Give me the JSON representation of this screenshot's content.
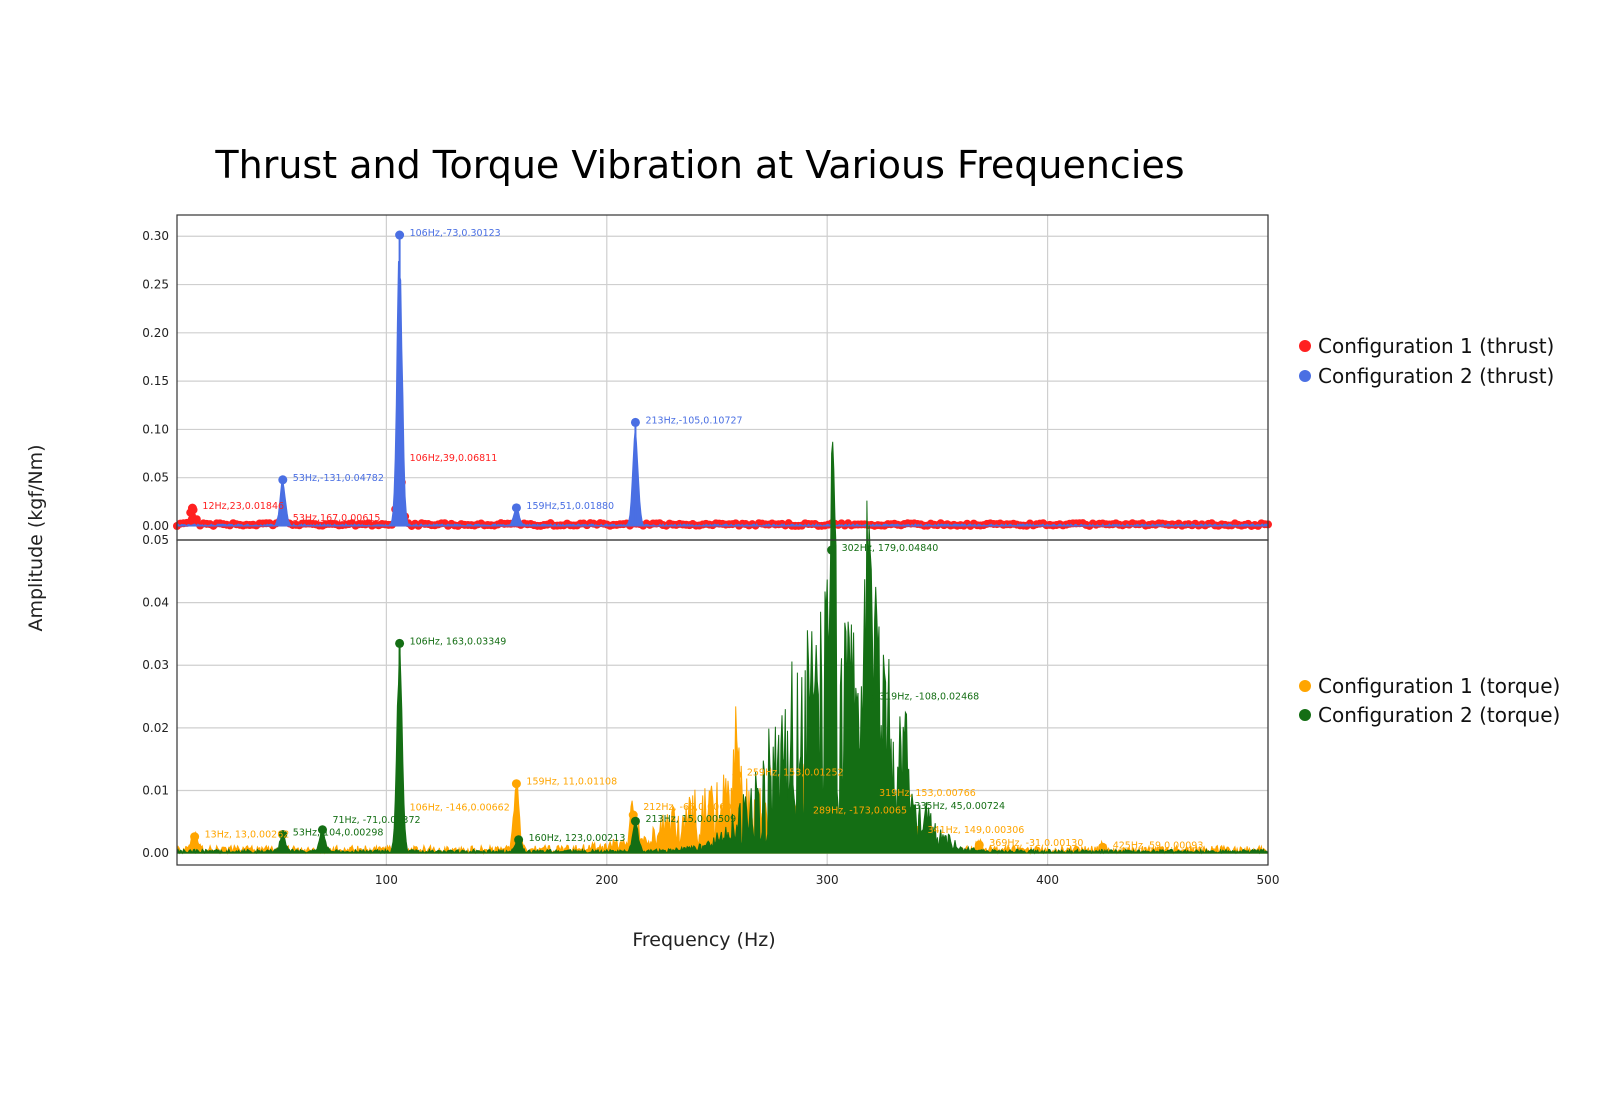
{
  "chart_data": [
    {
      "type": "line",
      "title": "Thrust and Torque Vibration at Various Frequencies",
      "xlabel": "Frequency (Hz)",
      "ylabel": "Amplitude (kgf/Nm)",
      "xlim": [
        5,
        500
      ],
      "ylim": [
        -0.0145,
        0.322
      ],
      "xticks": [
        "100",
        "200",
        "300",
        "400",
        "500"
      ],
      "yticks": [
        "0.00",
        "0.05",
        "0.10",
        "0.15",
        "0.20",
        "0.25",
        "0.30"
      ],
      "grid": true,
      "legend_placement": "right",
      "series": [
        {
          "name": "Configuration 1 (thrust)",
          "color": "#ff2020",
          "peaks": [
            {
              "x": 12,
              "y": 0.01846,
              "label": "12Hz,23,0.01846"
            },
            {
              "x": 53,
              "y": 0.00615,
              "label": "53Hz,167,0.00615"
            },
            {
              "x": 106,
              "y": 0.06811,
              "label": "106Hz,39,0.06811"
            }
          ]
        },
        {
          "name": "Configuration 2 (thrust)",
          "color": "#4a6fe3",
          "peaks": [
            {
              "x": 53,
              "y": 0.04782,
              "label": "53Hz,-131,0.04782"
            },
            {
              "x": 106,
              "y": 0.30123,
              "label": "106Hz,-73,0.30123"
            },
            {
              "x": 159,
              "y": 0.0188,
              "label": "159Hz,51,0.01880"
            },
            {
              "x": 213,
              "y": 0.10727,
              "label": "213Hz,-105,0.10727"
            }
          ]
        }
      ]
    },
    {
      "type": "line",
      "xlabel": "Frequency (Hz)",
      "xlim": [
        5,
        500
      ],
      "ylim": [
        -0.0019,
        0.05
      ],
      "xticks": [
        "100",
        "200",
        "300",
        "400",
        "500"
      ],
      "yticks": [
        "0.00",
        "0.01",
        "0.02",
        "0.03",
        "0.04",
        "0.05"
      ],
      "grid": true,
      "legend_placement": "right",
      "series": [
        {
          "name": "Configuration 1 (torque)",
          "color": "#ffa500",
          "peaks": [
            {
              "x": 13,
              "y": 0.00262,
              "label": "13Hz, 13,0.00262"
            },
            {
              "x": 106,
              "y": 0.00662,
              "label": "106Hz, -146,0.00662"
            },
            {
              "x": 159,
              "y": 0.01108,
              "label": "159Hz, 11,0.01108"
            },
            {
              "x": 212,
              "y": 0.00608,
              "label": "212Hz, -66,0.00608"
            },
            {
              "x": 259,
              "y": 0.01252,
              "label": "259Hz, 153,0.01252"
            },
            {
              "x": 289,
              "y": 0.0065,
              "label": "289Hz, -173,0.0065"
            },
            {
              "x": 319,
              "y": 0.00766,
              "label": "319Hz, 153,0.00766"
            },
            {
              "x": 341,
              "y": 0.00306,
              "label": "341Hz, 149,0.00306"
            },
            {
              "x": 369,
              "y": 0.0013,
              "label": "369Hz, -31,0.00130"
            },
            {
              "x": 425,
              "y": 0.00093,
              "label": "425Hz, 59,0.00093"
            }
          ]
        },
        {
          "name": "Configuration 2 (torque)",
          "color": "#146e14",
          "peaks": [
            {
              "x": 53,
              "y": 0.00298,
              "label": "53Hz, 104,0.00298"
            },
            {
              "x": 71,
              "y": 0.00372,
              "label": "71Hz, -71,0.00372"
            },
            {
              "x": 106,
              "y": 0.03349,
              "label": "106Hz, 163,0.03349"
            },
            {
              "x": 160,
              "y": 0.00213,
              "label": "160Hz, 123,0.00213"
            },
            {
              "x": 213,
              "y": 0.00509,
              "label": "213Hz, 15,0.00509"
            },
            {
              "x": 302,
              "y": 0.0484,
              "label": "302Hz, 179,0.04840"
            },
            {
              "x": 319,
              "y": 0.02468,
              "label": "319Hz, -108,0.02468"
            },
            {
              "x": 335,
              "y": 0.00724,
              "label": "335Hz, 45,0.00724"
            }
          ]
        }
      ]
    }
  ]
}
